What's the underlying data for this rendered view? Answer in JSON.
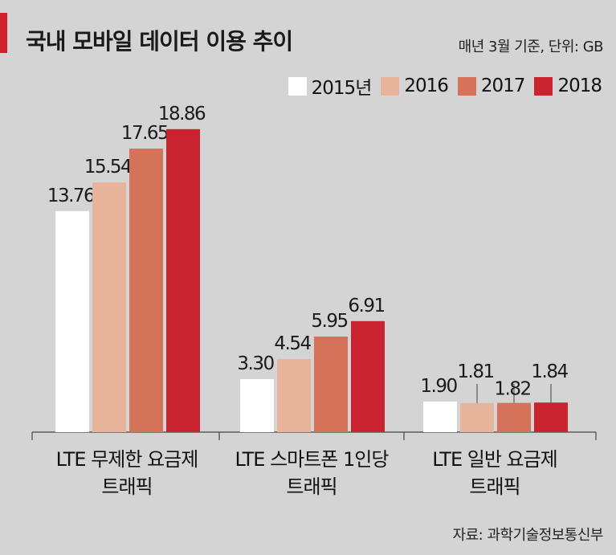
{
  "header": {
    "title": "국내 모바일 데이터 이용 추이",
    "unit_note": "매년 3월 기준, 단위: GB",
    "source": "자료: 과학기술정보통신부"
  },
  "colors": {
    "background": "#d4d4d4",
    "accent": "#d0202e",
    "series": [
      "#ffffff",
      "#e8b39b",
      "#d4735a",
      "#c8232f"
    ]
  },
  "chart_data": {
    "type": "bar",
    "title": "국내 모바일 데이터 이용 추이",
    "xlabel": "",
    "ylabel": "",
    "ylim": [
      0,
      20
    ],
    "grid": false,
    "legend": "top-right",
    "categories": [
      [
        "LTE 무제한 요금제",
        "트래픽"
      ],
      [
        "LTE 스마트폰 1인당",
        "트래픽"
      ],
      [
        "LTE 일반 요금제",
        "트래픽"
      ]
    ],
    "series": [
      {
        "name": "2015년",
        "values": [
          13.76,
          3.3,
          1.9
        ]
      },
      {
        "name": "2016",
        "values": [
          15.54,
          4.54,
          1.81
        ]
      },
      {
        "name": "2017",
        "values": [
          17.65,
          5.95,
          1.82
        ]
      },
      {
        "name": "2018",
        "values": [
          18.86,
          6.91,
          1.84
        ]
      }
    ],
    "value_labels": [
      [
        "13.76",
        "3.30",
        "1.90"
      ],
      [
        "15.54",
        "4.54",
        "1.81"
      ],
      [
        "17.65",
        "5.95",
        "1.82"
      ],
      [
        "18.86",
        "6.91",
        "1.84"
      ]
    ]
  }
}
